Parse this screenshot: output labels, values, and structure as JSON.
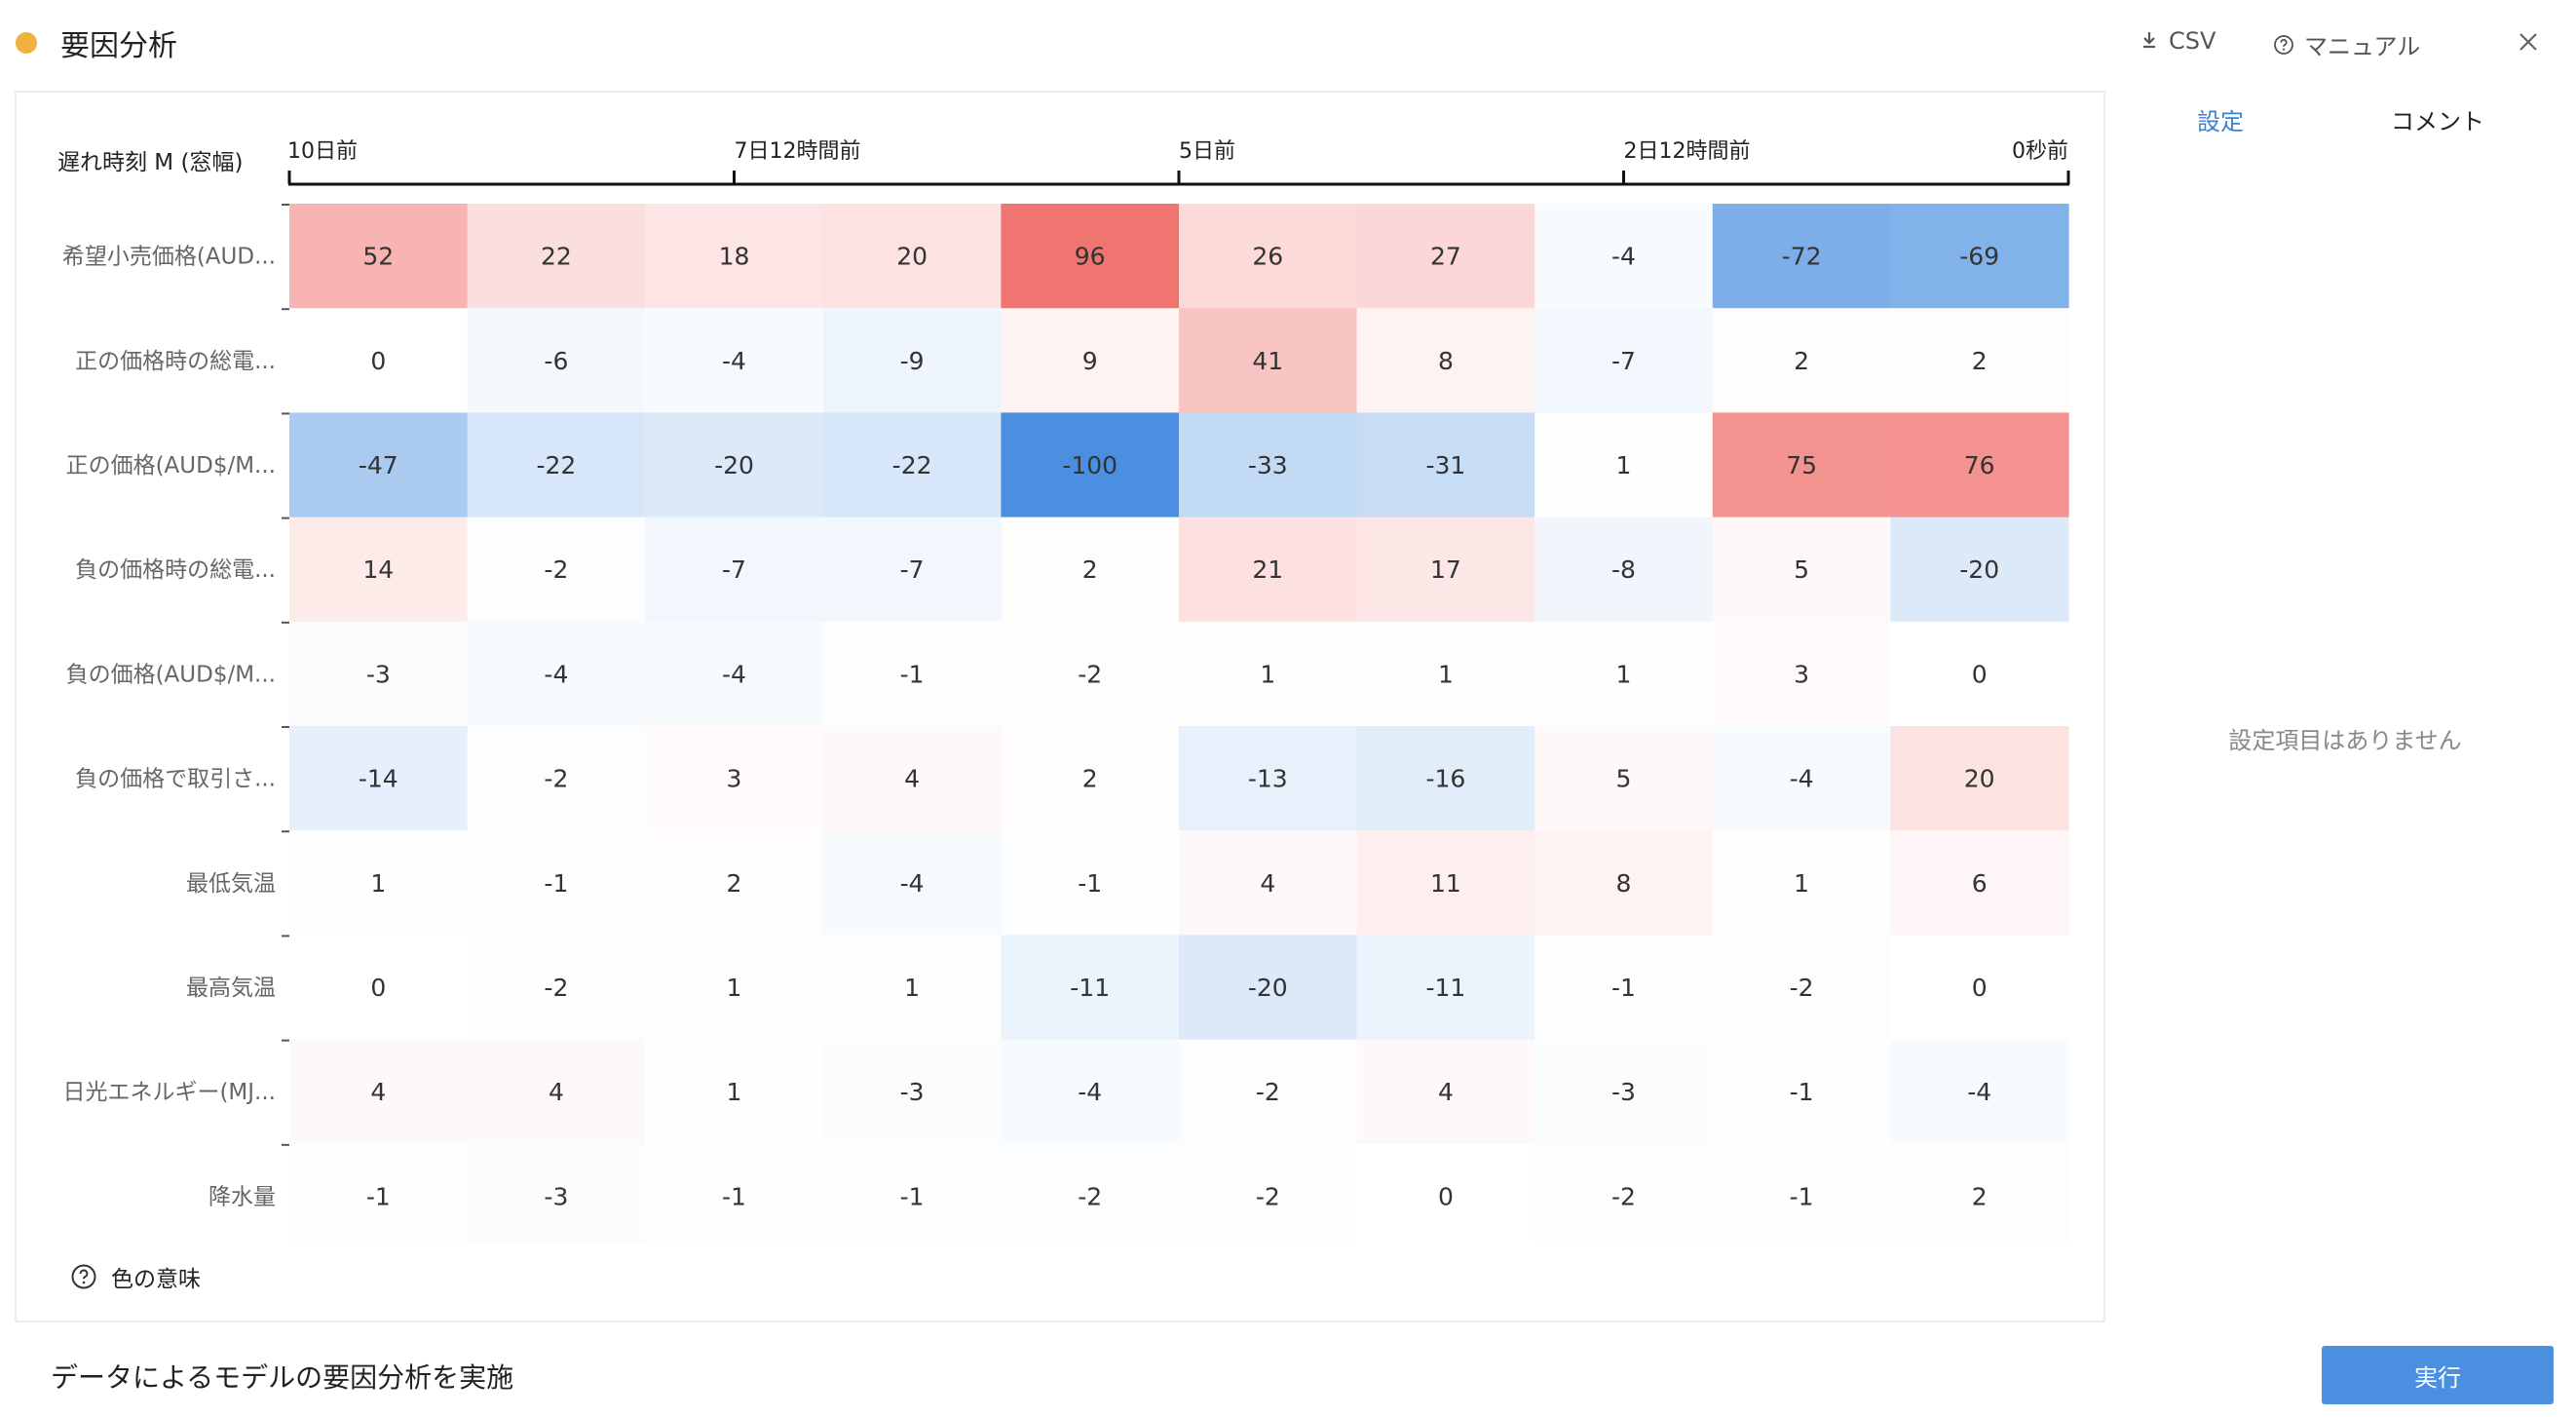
{
  "header": {
    "title": "要因分析",
    "csv_label": "CSV",
    "manual_label": "マニュアル"
  },
  "colors": {
    "status_dot": "#f0b23e",
    "accent": "#3b82d4",
    "positive": "#ef6f6a",
    "negative": "#4a8fe0"
  },
  "chart_data": {
    "type": "heatmap",
    "axis_label": "遅れ時刻 M (窓幅)",
    "x_ticks": [
      "10日前",
      "7日12時間前",
      "5日前",
      "2日12時間前",
      "0秒前"
    ],
    "rows": [
      "希望小売価格(AUD...",
      "正の価格時の総電...",
      "正の価格(AUD$/M...",
      "負の価格時の総電...",
      "負の価格(AUD$/M...",
      "負の価格で取引さ...",
      "最低気温",
      "最高気温",
      "日光エネルギー(MJ...",
      "降水量"
    ],
    "values": [
      [
        52,
        22,
        18,
        20,
        96,
        26,
        27,
        -4,
        -72,
        -69
      ],
      [
        0,
        -6,
        -4,
        -9,
        9,
        41,
        8,
        -7,
        2,
        2
      ],
      [
        -47,
        -22,
        -20,
        -22,
        -100,
        -33,
        -31,
        1,
        75,
        76
      ],
      [
        14,
        -2,
        -7,
        -7,
        2,
        21,
        17,
        -8,
        5,
        -20
      ],
      [
        -3,
        -4,
        -4,
        -1,
        -2,
        1,
        1,
        1,
        3,
        0
      ],
      [
        -14,
        -2,
        3,
        4,
        2,
        -13,
        -16,
        5,
        -4,
        20
      ],
      [
        1,
        -1,
        2,
        -4,
        -1,
        4,
        11,
        8,
        1,
        6
      ],
      [
        0,
        -2,
        1,
        1,
        -11,
        -20,
        -11,
        -1,
        -2,
        0
      ],
      [
        4,
        4,
        1,
        -3,
        -4,
        -2,
        4,
        -3,
        -1,
        -4
      ],
      [
        -1,
        -3,
        -1,
        -1,
        -2,
        -2,
        0,
        -2,
        -1,
        2
      ]
    ],
    "color_range": [
      -100,
      100
    ]
  },
  "color_help_label": "色の意味",
  "sidebar": {
    "tabs": [
      {
        "label": "設定",
        "active": true
      },
      {
        "label": "コメント",
        "active": false
      }
    ],
    "empty_text": "設定項目はありません"
  },
  "footer": {
    "description": "データによるモデルの要因分析を実施",
    "run_label": "実行"
  }
}
